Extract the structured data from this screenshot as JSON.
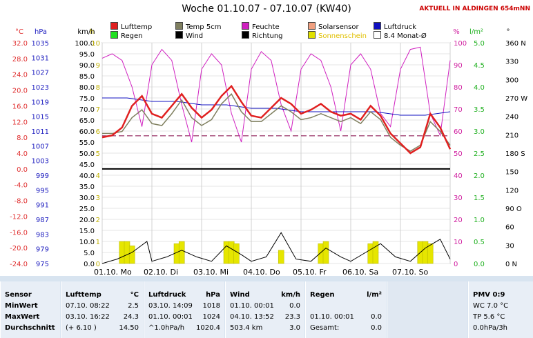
{
  "chart_data": {
    "type": "line",
    "title": "Woche 01.10.07 - 07.10.07 (KW40)",
    "notice": "AKTUELL IN ALDINGEN 654mNN",
    "x_labels": [
      "01.10. Mo",
      "02.10. Di",
      "03.10. Mi",
      "04.10. Do",
      "05.10. Fr",
      "06.10. Sa",
      "07.10. So"
    ],
    "xlim": [
      0,
      7
    ],
    "axes": [
      {
        "unit": "°C",
        "color": "#e03030",
        "ticks": [
          "32.0",
          "28.0",
          "24.0",
          "20.0",
          "16.0",
          "12.0",
          "8.0",
          "4.0",
          "0.0",
          "-4.0",
          "-8.0",
          "-12.0",
          "-16.0",
          "-20.0",
          "-24.0"
        ]
      },
      {
        "unit": "hPa",
        "color": "#2020c0",
        "ticks": [
          "1035",
          "1031",
          "1027",
          "1023",
          "1019",
          "1015",
          "1011",
          "1007",
          "1003",
          "999",
          "995",
          "991",
          "987",
          "983",
          "979",
          "975"
        ]
      },
      {
        "unit": "km/h",
        "color": "#000000",
        "ticks": [
          "100.0",
          "95.0",
          "90.0",
          "85.0",
          "80.0",
          "75.0",
          "70.0",
          "65.0",
          "60.0",
          "55.0",
          "50.0",
          "45.0",
          "40.0",
          "35.0",
          "30.0",
          "25.0",
          "20.0",
          "15.0",
          "10.0",
          "5.0",
          "0.0"
        ]
      },
      {
        "unit": "h",
        "color": "#c0b000",
        "ticks": [
          "10",
          "9",
          "8",
          "7",
          "6",
          "5",
          "4",
          "3",
          "2",
          "1",
          "0"
        ]
      },
      {
        "unit": "%",
        "color": "#d020a0",
        "ticks": [
          "100",
          "90",
          "80",
          "70",
          "60",
          "50",
          "40",
          "30",
          "20",
          "10",
          "0"
        ]
      },
      {
        "unit": "l/m²",
        "color": "#20b020",
        "ticks": [
          "5.0",
          "4.5",
          "4.0",
          "3.5",
          "3.0",
          "2.5",
          "2.0",
          "1.5",
          "1.0",
          "0.5",
          "0.0"
        ]
      },
      {
        "unit": "°",
        "color": "#000000",
        "ticks": [
          "360 N",
          "330",
          "300",
          "270 W",
          "240",
          "210",
          "180 S",
          "150",
          "120",
          "90 O",
          "60",
          "30",
          "0 N"
        ]
      }
    ],
    "legend": [
      {
        "name": "Lufttemp",
        "color": "#e02020"
      },
      {
        "name": "Temp 5cm",
        "color": "#808060"
      },
      {
        "name": "Feuchte",
        "color": "#d020c0"
      },
      {
        "name": "Solarsensor",
        "color": "#f0a080"
      },
      {
        "name": "Luftdruck",
        "color": "#1010c0"
      },
      {
        "name": "Regen",
        "color": "#20e020"
      },
      {
        "name": "Wind",
        "color": "#000000"
      },
      {
        "name": "Richtung",
        "color": "#000000"
      },
      {
        "name": "Sonnenschein",
        "color": "#e0e000"
      },
      {
        "name": "8.4 Monat-Ø",
        "color": "#ffffff"
      }
    ],
    "series": [
      {
        "name": "Lufttemp",
        "x": [
          0,
          0.2,
          0.4,
          0.6,
          0.8,
          1.0,
          1.2,
          1.4,
          1.6,
          1.8,
          2.0,
          2.2,
          2.4,
          2.6,
          2.8,
          3.0,
          3.2,
          3.4,
          3.6,
          3.8,
          4.0,
          4.2,
          4.4,
          4.6,
          4.8,
          5.0,
          5.2,
          5.4,
          5.6,
          5.8,
          6.0,
          6.2,
          6.4,
          6.6,
          6.8,
          7.0
        ],
        "values": [
          8.0,
          8.5,
          10.5,
          16.0,
          18.5,
          14.0,
          13.0,
          16.0,
          19.0,
          15.5,
          13.0,
          15.0,
          18.5,
          21.0,
          17.0,
          13.5,
          13.0,
          15.5,
          18.0,
          16.5,
          14.0,
          15.0,
          16.5,
          14.5,
          13.5,
          14.0,
          12.5,
          16.0,
          13.5,
          9.0,
          6.5,
          4.0,
          5.5,
          14.0,
          10.5,
          5.0
        ]
      },
      {
        "name": "Temp 5cm",
        "x": [
          0,
          0.2,
          0.4,
          0.6,
          0.8,
          1.0,
          1.2,
          1.4,
          1.6,
          1.8,
          2.0,
          2.2,
          2.4,
          2.6,
          2.8,
          3.0,
          3.2,
          3.4,
          3.6,
          3.8,
          4.0,
          4.2,
          4.4,
          4.6,
          4.8,
          5.0,
          5.2,
          5.4,
          5.6,
          5.8,
          6.0,
          6.2,
          6.4,
          6.6,
          6.8,
          7.0
        ],
        "values": [
          9.0,
          9.0,
          9.5,
          13.0,
          15.0,
          11.5,
          11.0,
          14.0,
          17.5,
          13.0,
          11.0,
          12.5,
          16.5,
          19.0,
          14.5,
          12.0,
          12.0,
          14.0,
          16.0,
          14.5,
          12.5,
          13.0,
          14.0,
          13.0,
          12.0,
          13.0,
          11.5,
          14.5,
          12.5,
          8.0,
          6.0,
          4.5,
          6.0,
          12.0,
          9.5,
          6.0
        ]
      },
      {
        "name": "Feuchte",
        "x": [
          0,
          0.2,
          0.4,
          0.6,
          0.8,
          1.0,
          1.2,
          1.4,
          1.6,
          1.8,
          2.0,
          2.2,
          2.4,
          2.6,
          2.8,
          3.0,
          3.2,
          3.4,
          3.6,
          3.8,
          4.0,
          4.2,
          4.4,
          4.6,
          4.8,
          5.0,
          5.2,
          5.4,
          5.6,
          5.8,
          6.0,
          6.2,
          6.4,
          6.6,
          6.8,
          7.0
        ],
        "values": [
          93,
          95,
          92,
          80,
          62,
          90,
          97,
          92,
          72,
          55,
          88,
          95,
          90,
          68,
          55,
          88,
          96,
          92,
          72,
          60,
          88,
          95,
          92,
          80,
          60,
          90,
          95,
          88,
          68,
          62,
          88,
          97,
          98,
          68,
          58,
          92
        ]
      },
      {
        "name": "Luftdruck",
        "x": [
          0,
          0.5,
          1.0,
          1.5,
          2.0,
          2.5,
          3.0,
          3.5,
          4.0,
          4.5,
          5.0,
          5.5,
          6.0,
          6.5,
          7.0
        ],
        "values": [
          1023,
          1023,
          1022,
          1022,
          1021,
          1021,
          1020,
          1020,
          1019,
          1019,
          1019,
          1019,
          1018,
          1018,
          1019
        ]
      },
      {
        "name": "Wind",
        "x": [
          0,
          0.3,
          0.6,
          0.9,
          1.0,
          1.3,
          1.6,
          1.9,
          2.2,
          2.5,
          2.8,
          3.0,
          3.3,
          3.6,
          3.9,
          4.2,
          4.5,
          4.8,
          5.0,
          5.3,
          5.6,
          5.9,
          6.2,
          6.5,
          6.8,
          7.0
        ],
        "values": [
          0,
          2,
          5,
          10,
          1,
          3,
          6,
          3,
          1,
          8,
          4,
          1,
          3,
          14,
          2,
          1,
          7,
          3,
          1,
          5,
          9,
          3,
          1,
          7,
          11,
          2
        ]
      },
      {
        "name": "Sonnenschein",
        "x": [
          0.4,
          0.5,
          0.6,
          1.5,
          1.6,
          2.5,
          2.6,
          2.7,
          3.6,
          4.4,
          4.5,
          5.4,
          5.5,
          6.4,
          6.5,
          6.6
        ],
        "values": [
          1.0,
          1.0,
          0.8,
          0.9,
          1.0,
          1.0,
          1.0,
          0.9,
          0.6,
          0.9,
          1.0,
          0.9,
          1.0,
          1.0,
          1.0,
          0.9
        ]
      }
    ],
    "reference_lines": [
      {
        "name": "8.4 Monat-Ø",
        "axis": "°C",
        "value": 8.4
      },
      {
        "name": "0 °C",
        "axis": "°C",
        "value": 0
      }
    ]
  },
  "table": [
    {
      "header": "Sensor",
      "rows": [
        "MinWert",
        "MaxWert",
        "Durchschnitt"
      ]
    },
    {
      "header": "Lufttemp",
      "unit": "°C",
      "rows": [
        [
          "07.10.  08:22",
          "2.5"
        ],
        [
          "03.10.  16:22",
          "24.3"
        ],
        [
          "(+ 6.10 )",
          "14.50"
        ]
      ]
    },
    {
      "header": "Luftdruck",
      "unit": "hPa",
      "rows": [
        [
          "03.10.  14:09",
          "1018"
        ],
        [
          "01.10.  00:01",
          "1024"
        ],
        [
          "^1.0hPa/h",
          "1020.4"
        ]
      ]
    },
    {
      "header": "Wind",
      "unit": "km/h",
      "rows": [
        [
          "01.10.  00:01",
          "0.0"
        ],
        [
          "04.10.  13:52",
          "23.3"
        ],
        [
          "503.4 km",
          "3.0"
        ]
      ]
    },
    {
      "header": "Regen",
      "unit": "l/m²",
      "rows": [
        [
          "",
          ""
        ],
        [
          "01.10.  00:01",
          "0.0"
        ],
        [
          "Gesamt:",
          "0.0"
        ]
      ]
    },
    {
      "header": "PMV 0:9",
      "rows": [
        "WC 7.0 °C",
        "TP 5.6 °C",
        "0.0hPa/3h"
      ]
    }
  ]
}
